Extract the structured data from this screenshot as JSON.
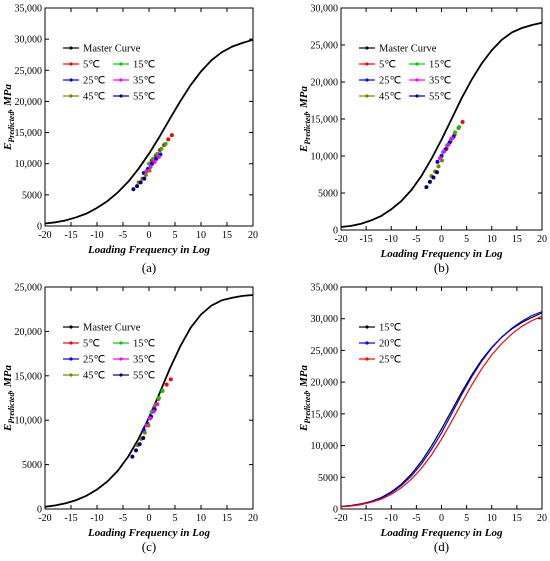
{
  "chart_data": [
    {
      "type": "line",
      "caption": "(a)",
      "xlabel": "Loading Frequency in Log",
      "ylabel": "E",
      "ylabel_sub": "Predicted",
      "ylabel_unit": ", MPa",
      "xlim": [
        -20,
        20
      ],
      "ylim": [
        0,
        35000
      ],
      "xticks": [
        -20,
        -15,
        -10,
        -5,
        0,
        5,
        10,
        15,
        20
      ],
      "yticks": [
        0,
        5000,
        10000,
        15000,
        20000,
        25000,
        30000,
        35000
      ],
      "ytick_labels": [
        "0",
        "5000",
        "10,000",
        "15,000",
        "20,000",
        "25,000",
        "30,000",
        "35,000"
      ],
      "legend_position": "top-left",
      "series": [
        {
          "name": "Master Curve",
          "color": "#000000",
          "kind": "curve",
          "x": [
            -20,
            -18,
            -16,
            -14,
            -12,
            -10,
            -8,
            -6,
            -4,
            -2,
            0,
            2,
            4,
            6,
            8,
            10,
            12,
            14,
            16,
            18,
            20
          ],
          "values": [
            400,
            600,
            900,
            1400,
            2000,
            2900,
            4000,
            5400,
            7100,
            9200,
            11600,
            14300,
            17200,
            20000,
            22600,
            24800,
            26600,
            27900,
            28800,
            29400,
            29900
          ]
        },
        {
          "name": "5℃",
          "color": "#ff0000",
          "kind": "points",
          "x": [
            0.5,
            1.3,
            2.1,
            2.9,
            3.7,
            4.4
          ],
          "values": [
            10500,
            11300,
            12200,
            13000,
            13900,
            14600
          ]
        },
        {
          "name": "15℃",
          "color": "#00cc00",
          "kind": "points",
          "x": [
            0.0,
            0.8,
            1.6,
            2.4,
            3.2
          ],
          "values": [
            10000,
            10800,
            11600,
            12400,
            13200
          ]
        },
        {
          "name": "25℃",
          "color": "#0000ff",
          "kind": "points",
          "x": [
            -1.0,
            -0.2,
            0.6,
            1.4,
            2.2
          ],
          "values": [
            8500,
            9200,
            10000,
            10800,
            11500
          ]
        },
        {
          "name": "35℃",
          "color": "#ff00ff",
          "kind": "points",
          "x": [
            -0.5,
            0.3,
            1.1,
            1.9
          ],
          "values": [
            8800,
            9500,
            10300,
            11100
          ]
        },
        {
          "name": "45℃",
          "color": "#808000",
          "kind": "points",
          "x": [
            -2.0,
            -1.3,
            -0.6,
            0.1
          ],
          "values": [
            7000,
            7600,
            8200,
            8900
          ]
        },
        {
          "name": "55℃",
          "color": "#000080",
          "kind": "points",
          "x": [
            -3.0,
            -2.3,
            -1.6,
            -0.9
          ],
          "values": [
            5900,
            6400,
            7000,
            7600
          ]
        }
      ]
    },
    {
      "type": "line",
      "caption": "(b)",
      "xlabel": "Loading Frequency in Log",
      "ylabel": "E",
      "ylabel_sub": "Predicted",
      "ylabel_unit": ", MPa",
      "xlim": [
        -20,
        20
      ],
      "ylim": [
        0,
        30000
      ],
      "xticks": [
        -20,
        -15,
        -10,
        -5,
        0,
        5,
        10,
        15,
        20
      ],
      "yticks": [
        0,
        5000,
        10000,
        15000,
        20000,
        25000,
        30000
      ],
      "ytick_labels": [
        "0",
        "5000",
        "10,000",
        "15,000",
        "20,000",
        "25,000",
        "30,000"
      ],
      "legend_position": "top-left",
      "series": [
        {
          "name": "Master Curve",
          "color": "#000000",
          "kind": "curve",
          "x": [
            -20,
            -18,
            -16,
            -14,
            -12,
            -10,
            -8,
            -6,
            -4,
            -2,
            0,
            2,
            4,
            6,
            8,
            10,
            12,
            14,
            16,
            18,
            20
          ],
          "values": [
            400,
            550,
            850,
            1300,
            1900,
            2800,
            3900,
            5400,
            7300,
            9600,
            12200,
            15000,
            17800,
            20300,
            22500,
            24300,
            25700,
            26700,
            27300,
            27700,
            28000
          ]
        },
        {
          "name": "5℃",
          "color": "#ff0000",
          "kind": "points",
          "x": [
            1.0,
            1.8,
            2.6,
            3.4,
            4.2
          ],
          "values": [
            11000,
            12000,
            12900,
            13800,
            14600
          ]
        },
        {
          "name": "15℃",
          "color": "#00cc00",
          "kind": "points",
          "x": [
            0.3,
            1.1,
            1.9,
            2.7,
            3.5
          ],
          "values": [
            10500,
            11400,
            12300,
            13200,
            13900
          ]
        },
        {
          "name": "25℃",
          "color": "#0000ff",
          "kind": "points",
          "x": [
            -0.8,
            0.0,
            0.8,
            1.6,
            2.4
          ],
          "values": [
            9200,
            10000,
            10900,
            11800,
            12600
          ]
        },
        {
          "name": "35℃",
          "color": "#ff00ff",
          "kind": "points",
          "x": [
            -0.3,
            0.5,
            1.3,
            2.1
          ],
          "values": [
            9700,
            10600,
            11500,
            12400
          ]
        },
        {
          "name": "45℃",
          "color": "#808000",
          "kind": "points",
          "x": [
            -2.0,
            -1.3,
            -0.6,
            0.1
          ],
          "values": [
            7300,
            7900,
            8600,
            9400
          ]
        },
        {
          "name": "55℃",
          "color": "#000080",
          "kind": "points",
          "x": [
            -3.0,
            -2.3,
            -1.6,
            -0.9
          ],
          "values": [
            5800,
            6500,
            7100,
            7800
          ]
        }
      ]
    },
    {
      "type": "line",
      "caption": "(c)",
      "xlabel": "Loading Frequency in Log",
      "ylabel": "E",
      "ylabel_sub": "Predicted",
      "ylabel_unit": ", MPa",
      "xlim": [
        -20,
        20
      ],
      "ylim": [
        0,
        25000
      ],
      "xticks": [
        -20,
        -15,
        -10,
        -5,
        0,
        5,
        10,
        15,
        20
      ],
      "yticks": [
        0,
        5000,
        10000,
        15000,
        20000,
        25000
      ],
      "ytick_labels": [
        "0",
        "5000",
        "10,000",
        "15,000",
        "20,000",
        "25,000"
      ],
      "legend_position": "top-left",
      "series": [
        {
          "name": "Master Curve",
          "color": "#000000",
          "kind": "curve",
          "x": [
            -20,
            -18,
            -16,
            -14,
            -12,
            -10,
            -8,
            -6,
            -4,
            -2,
            0,
            2,
            4,
            6,
            8,
            10,
            12,
            14,
            16,
            18,
            20
          ],
          "values": [
            250,
            400,
            650,
            1000,
            1500,
            2200,
            3100,
            4300,
            5900,
            7900,
            10300,
            13000,
            15800,
            18300,
            20400,
            21900,
            22900,
            23500,
            23800,
            24000,
            24100
          ]
        },
        {
          "name": "5℃",
          "color": "#ff0000",
          "kind": "points",
          "x": [
            1.0,
            1.8,
            2.6,
            3.4,
            4.2
          ],
          "values": [
            11400,
            12400,
            13300,
            14000,
            14600
          ]
        },
        {
          "name": "15℃",
          "color": "#00cc00",
          "kind": "points",
          "x": [
            0.5,
            1.2,
            1.9,
            2.6
          ],
          "values": [
            10900,
            11700,
            12500,
            13300
          ]
        },
        {
          "name": "25℃",
          "color": "#0000ff",
          "kind": "points",
          "x": [
            -1.0,
            -0.3,
            0.4,
            1.1
          ],
          "values": [
            8900,
            9600,
            10400,
            11200
          ]
        },
        {
          "name": "35℃",
          "color": "#ff00ff",
          "kind": "points",
          "x": [
            -0.5,
            0.2,
            0.9,
            1.6
          ],
          "values": [
            9400,
            10200,
            11000,
            11800
          ]
        },
        {
          "name": "45℃",
          "color": "#808000",
          "kind": "points",
          "x": [
            -2.2,
            -1.5,
            -0.8,
            -0.1
          ],
          "values": [
            7200,
            7900,
            8600,
            9400
          ]
        },
        {
          "name": "55℃",
          "color": "#000080",
          "kind": "points",
          "x": [
            -3.2,
            -2.5,
            -1.8,
            -1.1
          ],
          "values": [
            5900,
            6600,
            7300,
            8000
          ]
        }
      ]
    },
    {
      "type": "line",
      "caption": "(d)",
      "xlabel": "Loading Frequency in Log",
      "ylabel": "E",
      "ylabel_sub": "Predicted",
      "ylabel_unit": ", MPa",
      "xlim": [
        -20,
        20
      ],
      "ylim": [
        0,
        35000
      ],
      "xticks": [
        -20,
        -15,
        -10,
        -5,
        0,
        5,
        10,
        15,
        20
      ],
      "yticks": [
        0,
        5000,
        10000,
        15000,
        20000,
        25000,
        30000,
        35000
      ],
      "ytick_labels": [
        "0",
        "5000",
        "10,000",
        "15,000",
        "20,000",
        "25,000",
        "30,000",
        "35,000"
      ],
      "legend_position": "top-left",
      "series": [
        {
          "name": "15℃",
          "color": "#000000",
          "kind": "curve",
          "x": [
            -20,
            -18,
            -16,
            -14,
            -12,
            -10,
            -8,
            -6,
            -4,
            -2,
            0,
            2,
            4,
            6,
            8,
            10,
            12,
            14,
            16,
            18,
            20
          ],
          "values": [
            400,
            550,
            800,
            1200,
            1800,
            2700,
            3900,
            5500,
            7500,
            9900,
            12600,
            15500,
            18400,
            21100,
            23500,
            25500,
            27100,
            28400,
            29400,
            30200,
            30900
          ]
        },
        {
          "name": "20℃",
          "color": "#0000ff",
          "kind": "curve",
          "x": [
            -20,
            -18,
            -16,
            -14,
            -12,
            -10,
            -8,
            -6,
            -4,
            -2,
            0,
            2,
            4,
            6,
            8,
            10,
            12,
            14,
            16,
            18,
            20
          ],
          "values": [
            380,
            520,
            760,
            1150,
            1700,
            2550,
            3700,
            5200,
            7100,
            9400,
            12000,
            15000,
            18000,
            20800,
            23300,
            25400,
            27100,
            28500,
            29600,
            30500,
            31100
          ]
        },
        {
          "name": "25℃",
          "color": "#ff0000",
          "kind": "curve",
          "x": [
            -20,
            -18,
            -16,
            -14,
            -12,
            -10,
            -8,
            -6,
            -4,
            -2,
            0,
            2,
            4,
            6,
            8,
            10,
            12,
            14,
            16,
            18,
            20
          ],
          "values": [
            350,
            480,
            700,
            1050,
            1550,
            2300,
            3350,
            4700,
            6400,
            8500,
            11000,
            13800,
            16700,
            19500,
            22100,
            24300,
            26100,
            27600,
            28800,
            29700,
            30400
          ]
        }
      ]
    }
  ]
}
